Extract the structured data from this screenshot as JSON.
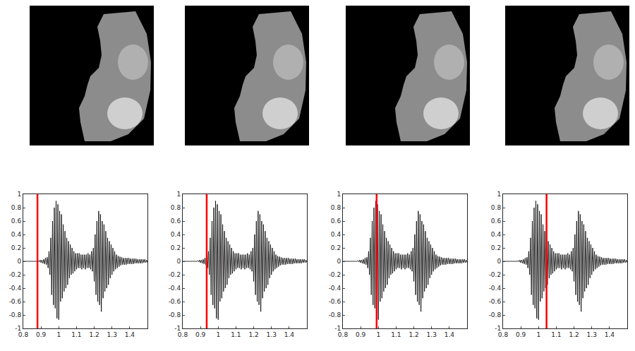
{
  "chart_data": {
    "type": "line",
    "x": [
      0.8,
      0.88,
      0.885,
      0.89,
      0.895,
      0.9,
      0.905,
      0.91,
      0.915,
      0.92,
      0.925,
      0.93,
      0.935,
      0.94,
      0.945,
      0.95,
      0.955,
      0.96,
      0.965,
      0.97,
      0.975,
      0.98,
      0.985,
      0.99,
      0.995,
      1,
      1.005,
      1.01,
      1.015,
      1.02,
      1.025,
      1.03,
      1.035,
      1.04,
      1.045,
      1.05,
      1.055,
      1.06,
      1.065,
      1.07,
      1.075,
      1.08,
      1.085,
      1.09,
      1.095,
      1.1,
      1.105,
      1.11,
      1.115,
      1.12,
      1.125,
      1.13,
      1.135,
      1.14,
      1.145,
      1.15,
      1.155,
      1.16,
      1.165,
      1.17,
      1.175,
      1.18,
      1.185,
      1.19,
      1.195,
      1.2,
      1.205,
      1.21,
      1.215,
      1.22,
      1.225,
      1.23,
      1.235,
      1.24,
      1.245,
      1.25,
      1.255,
      1.26,
      1.265,
      1.27,
      1.275,
      1.28,
      1.285,
      1.29,
      1.295,
      1.3,
      1.305,
      1.31,
      1.315,
      1.32,
      1.325,
      1.33,
      1.335,
      1.34,
      1.345,
      1.35,
      1.355,
      1.36,
      1.365,
      1.37,
      1.375,
      1.38,
      1.385,
      1.39,
      1.395,
      1.4,
      1.405,
      1.41,
      1.415,
      1.42,
      1.425,
      1.43,
      1.435,
      1.44,
      1.445,
      1.45,
      1.455,
      1.46,
      1.465,
      1.47,
      1.475,
      1.48,
      1.485,
      1.49,
      1.495,
      1.5
    ],
    "values": [
      0,
      0,
      0.01,
      -0.01,
      0.02,
      -0.02,
      0.02,
      -0.03,
      0.03,
      -0.04,
      0.05,
      -0.05,
      0.06,
      -0.1,
      0.15,
      -0.2,
      0.35,
      -0.5,
      0.6,
      -0.65,
      0.8,
      -0.7,
      0.9,
      -0.85,
      0.85,
      -0.87,
      0.75,
      -0.6,
      0.7,
      -0.55,
      0.55,
      -0.45,
      0.45,
      -0.4,
      0.35,
      -0.35,
      0.3,
      -0.25,
      0.25,
      -0.2,
      0.2,
      -0.18,
      0.15,
      -0.15,
      0.12,
      -0.12,
      0.12,
      -0.1,
      0.12,
      -0.1,
      0.1,
      -0.12,
      0.1,
      -0.1,
      0.1,
      -0.12,
      0.1,
      -0.1,
      0.12,
      -0.1,
      0.1,
      -0.12,
      0.15,
      -0.15,
      0.2,
      -0.3,
      0.4,
      -0.5,
      0.6,
      -0.6,
      0.75,
      -0.65,
      0.7,
      -0.75,
      0.6,
      -0.55,
      0.55,
      -0.45,
      0.45,
      -0.4,
      0.35,
      -0.35,
      0.3,
      -0.25,
      0.25,
      -0.2,
      0.2,
      -0.15,
      0.15,
      -0.12,
      0.1,
      -0.1,
      0.08,
      -0.08,
      0.07,
      -0.06,
      0.06,
      -0.05,
      0.05,
      -0.05,
      0.05,
      -0.05,
      0.05,
      -0.04,
      0.05,
      -0.04,
      0.04,
      -0.04,
      0.04,
      -0.04,
      0.04,
      -0.03,
      0.04,
      -0.03,
      0.03,
      -0.03,
      0.03,
      -0.03,
      0.03,
      -0.03,
      0.03,
      -0.02,
      0.03,
      -0.02,
      0.02,
      -0.02
    ],
    "color": "#000000",
    "xlim": [
      0.8,
      1.5
    ],
    "xticks": [
      0.8,
      0.9,
      1,
      1.1,
      1.2,
      1.3,
      1.4
    ],
    "ylim": [
      -1,
      1
    ],
    "yticks": [
      -1,
      -0.8,
      -0.6,
      -0.4,
      -0.2,
      0,
      0.2,
      0.4,
      0.6,
      0.8,
      1
    ],
    "grid": false,
    "cursors": [
      {
        "x": 0.88,
        "color": "#ff0000"
      },
      {
        "x": 0.935,
        "color": "#ff0000"
      },
      {
        "x": 0.99,
        "color": "#ff0000"
      },
      {
        "x": 1.045,
        "color": "#ff0000"
      }
    ]
  }
}
